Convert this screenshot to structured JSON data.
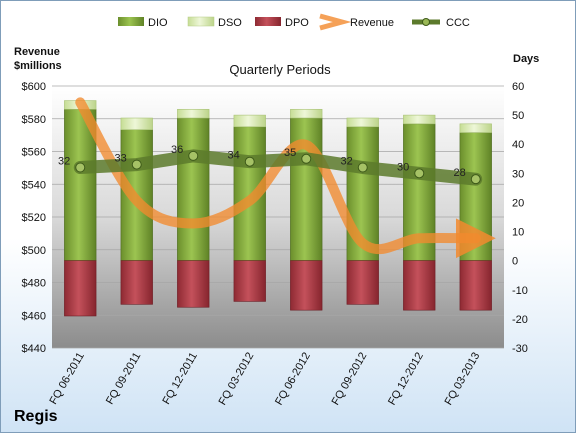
{
  "brand": "Regis",
  "chart_data": {
    "type": "bar",
    "title": "Quarterly Periods",
    "left_axis_label_line1": "Revenue",
    "left_axis_label_line2": "$millions",
    "right_axis_label": "Days",
    "left_ylim": [
      440,
      600
    ],
    "left_ticks": [
      "$440",
      "$460",
      "$480",
      "$500",
      "$520",
      "$540",
      "$560",
      "$580",
      "$600"
    ],
    "right_ylim": [
      -30,
      60
    ],
    "right_ticks": [
      "-30",
      "-20",
      "-10",
      "0",
      "10",
      "20",
      "30",
      "40",
      "50",
      "60"
    ],
    "categories": [
      "FQ 06-2011",
      "FQ 09-2011",
      "FQ 12-2011",
      "FQ 03-2012",
      "FQ 06-2012",
      "FQ 09-2012",
      "FQ 12-2012",
      "FQ 03-2013"
    ],
    "legend": [
      "DIO",
      "DSO",
      "DPO",
      "Revenue",
      "CCC"
    ],
    "series": [
      {
        "name": "DIO",
        "values": [
          52,
          45,
          49,
          46,
          49,
          46,
          47,
          44
        ],
        "color": "#7fa63a"
      },
      {
        "name": "DSO",
        "values": [
          3,
          4,
          3,
          4,
          3,
          3,
          3,
          3
        ],
        "color": "#d9ecb0"
      },
      {
        "name": "DPO",
        "values": [
          -19,
          -15,
          -16,
          -14,
          -17,
          -15,
          -17,
          -17
        ],
        "color": "#b23a45"
      },
      {
        "name": "Revenue",
        "values": [
          590,
          530,
          516,
          530,
          564,
          504,
          507,
          507
        ],
        "color": "#f28a2e"
      },
      {
        "name": "CCC",
        "values": [
          32,
          33,
          36,
          34,
          35,
          32,
          30,
          28
        ],
        "color": "#5c7a2c"
      }
    ],
    "ccc_labels": [
      "32",
      "33",
      "36",
      "34",
      "35",
      "32",
      "30",
      "28"
    ],
    "grid": true
  }
}
